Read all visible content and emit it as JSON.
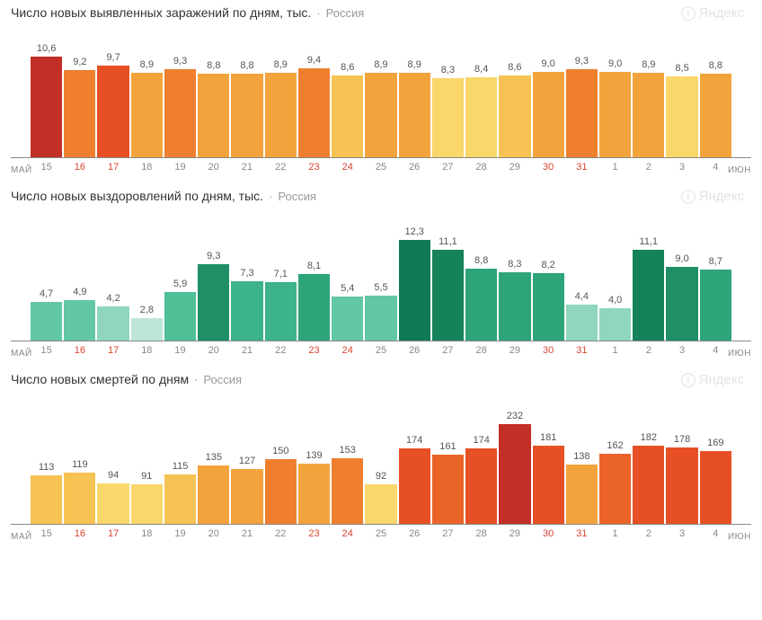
{
  "watermark": {
    "text": "Яндекс"
  },
  "axis": {
    "left_label": "МАЙ",
    "right_label": "ИЮН",
    "days": [
      "15",
      "16",
      "17",
      "18",
      "19",
      "20",
      "21",
      "22",
      "23",
      "24",
      "25",
      "26",
      "27",
      "28",
      "29",
      "30",
      "31",
      "1",
      "2",
      "3",
      "4"
    ],
    "weekend_color": "#d9432f",
    "weekday_color": "#888888",
    "weekend_indices": [
      1,
      2,
      8,
      9,
      15,
      16
    ]
  },
  "charts": [
    {
      "id": "cases",
      "title": "Число новых выявленных заражений по дням, тыс.",
      "region": "Россия",
      "value_height": 150,
      "ymax": 12.5,
      "decimal_comma": true,
      "bars": [
        {
          "v": 10.6,
          "c": "#c22f27"
        },
        {
          "v": 9.2,
          "c": "#ef7f2f"
        },
        {
          "v": 9.7,
          "c": "#e65024"
        },
        {
          "v": 8.9,
          "c": "#f3a33c"
        },
        {
          "v": 9.3,
          "c": "#ef7f2f"
        },
        {
          "v": 8.8,
          "c": "#f3a33c"
        },
        {
          "v": 8.8,
          "c": "#f3a33c"
        },
        {
          "v": 8.9,
          "c": "#f3a33c"
        },
        {
          "v": 9.4,
          "c": "#ef7f2f"
        },
        {
          "v": 8.6,
          "c": "#f6c251"
        },
        {
          "v": 8.9,
          "c": "#f3a33c"
        },
        {
          "v": 8.9,
          "c": "#f3a33c"
        },
        {
          "v": 8.3,
          "c": "#f9d76a"
        },
        {
          "v": 8.4,
          "c": "#f9d76a"
        },
        {
          "v": 8.6,
          "c": "#f6c251"
        },
        {
          "v": 9.0,
          "c": "#f3a33c"
        },
        {
          "v": 9.3,
          "c": "#ef7f2f"
        },
        {
          "v": 9.0,
          "c": "#f3a33c"
        },
        {
          "v": 8.9,
          "c": "#f3a33c"
        },
        {
          "v": 8.5,
          "c": "#f9d76a"
        },
        {
          "v": 8.8,
          "c": "#f3a33c"
        }
      ]
    },
    {
      "id": "recoveries",
      "title": "Число новых выздоровлений по дням, тыс.",
      "region": "Россия",
      "value_height": 150,
      "ymax": 14.5,
      "decimal_comma": true,
      "bars": [
        {
          "v": 4.7,
          "c": "#62c7a3"
        },
        {
          "v": 4.9,
          "c": "#62c7a3"
        },
        {
          "v": 4.2,
          "c": "#8fd6bc"
        },
        {
          "v": 2.8,
          "c": "#bde6d6"
        },
        {
          "v": 5.9,
          "c": "#4fbf95"
        },
        {
          "v": 9.3,
          "c": "#1f8f66"
        },
        {
          "v": 7.3,
          "c": "#3cb389"
        },
        {
          "v": 7.1,
          "c": "#3cb389"
        },
        {
          "v": 8.1,
          "c": "#2ea479"
        },
        {
          "v": 5.4,
          "c": "#62c7a3"
        },
        {
          "v": 5.5,
          "c": "#62c7a3"
        },
        {
          "v": 12.3,
          "c": "#0f7a53"
        },
        {
          "v": 11.1,
          "c": "#15825a"
        },
        {
          "v": 8.8,
          "c": "#2ea479"
        },
        {
          "v": 8.3,
          "c": "#2ea479"
        },
        {
          "v": 8.2,
          "c": "#2ea479"
        },
        {
          "v": 4.4,
          "c": "#8fd6bc"
        },
        {
          "v": 4.0,
          "c": "#8fd6bc"
        },
        {
          "v": 11.1,
          "c": "#15825a"
        },
        {
          "v": 9.0,
          "c": "#1f8f66"
        },
        {
          "v": 8.7,
          "c": "#2ea479"
        }
      ]
    },
    {
      "id": "deaths",
      "title": "Число новых смертей по дням",
      "region": "Россия",
      "value_height": 150,
      "ymax": 275,
      "decimal_comma": false,
      "bars": [
        {
          "v": 113,
          "c": "#f6c251"
        },
        {
          "v": 119,
          "c": "#f6c251"
        },
        {
          "v": 94,
          "c": "#f9d76a"
        },
        {
          "v": 91,
          "c": "#f9d76a"
        },
        {
          "v": 115,
          "c": "#f6c251"
        },
        {
          "v": 135,
          "c": "#f3a33c"
        },
        {
          "v": 127,
          "c": "#f3a33c"
        },
        {
          "v": 150,
          "c": "#ef7f2f"
        },
        {
          "v": 139,
          "c": "#f3a33c"
        },
        {
          "v": 153,
          "c": "#ef7f2f"
        },
        {
          "v": 92,
          "c": "#f9d76a"
        },
        {
          "v": 174,
          "c": "#e65024"
        },
        {
          "v": 161,
          "c": "#ea6428"
        },
        {
          "v": 174,
          "c": "#e65024"
        },
        {
          "v": 232,
          "c": "#c22f27"
        },
        {
          "v": 181,
          "c": "#e65024"
        },
        {
          "v": 138,
          "c": "#f3a33c"
        },
        {
          "v": 162,
          "c": "#ea6428"
        },
        {
          "v": 182,
          "c": "#e65024"
        },
        {
          "v": 178,
          "c": "#e65024"
        },
        {
          "v": 169,
          "c": "#e65024"
        }
      ]
    }
  ]
}
